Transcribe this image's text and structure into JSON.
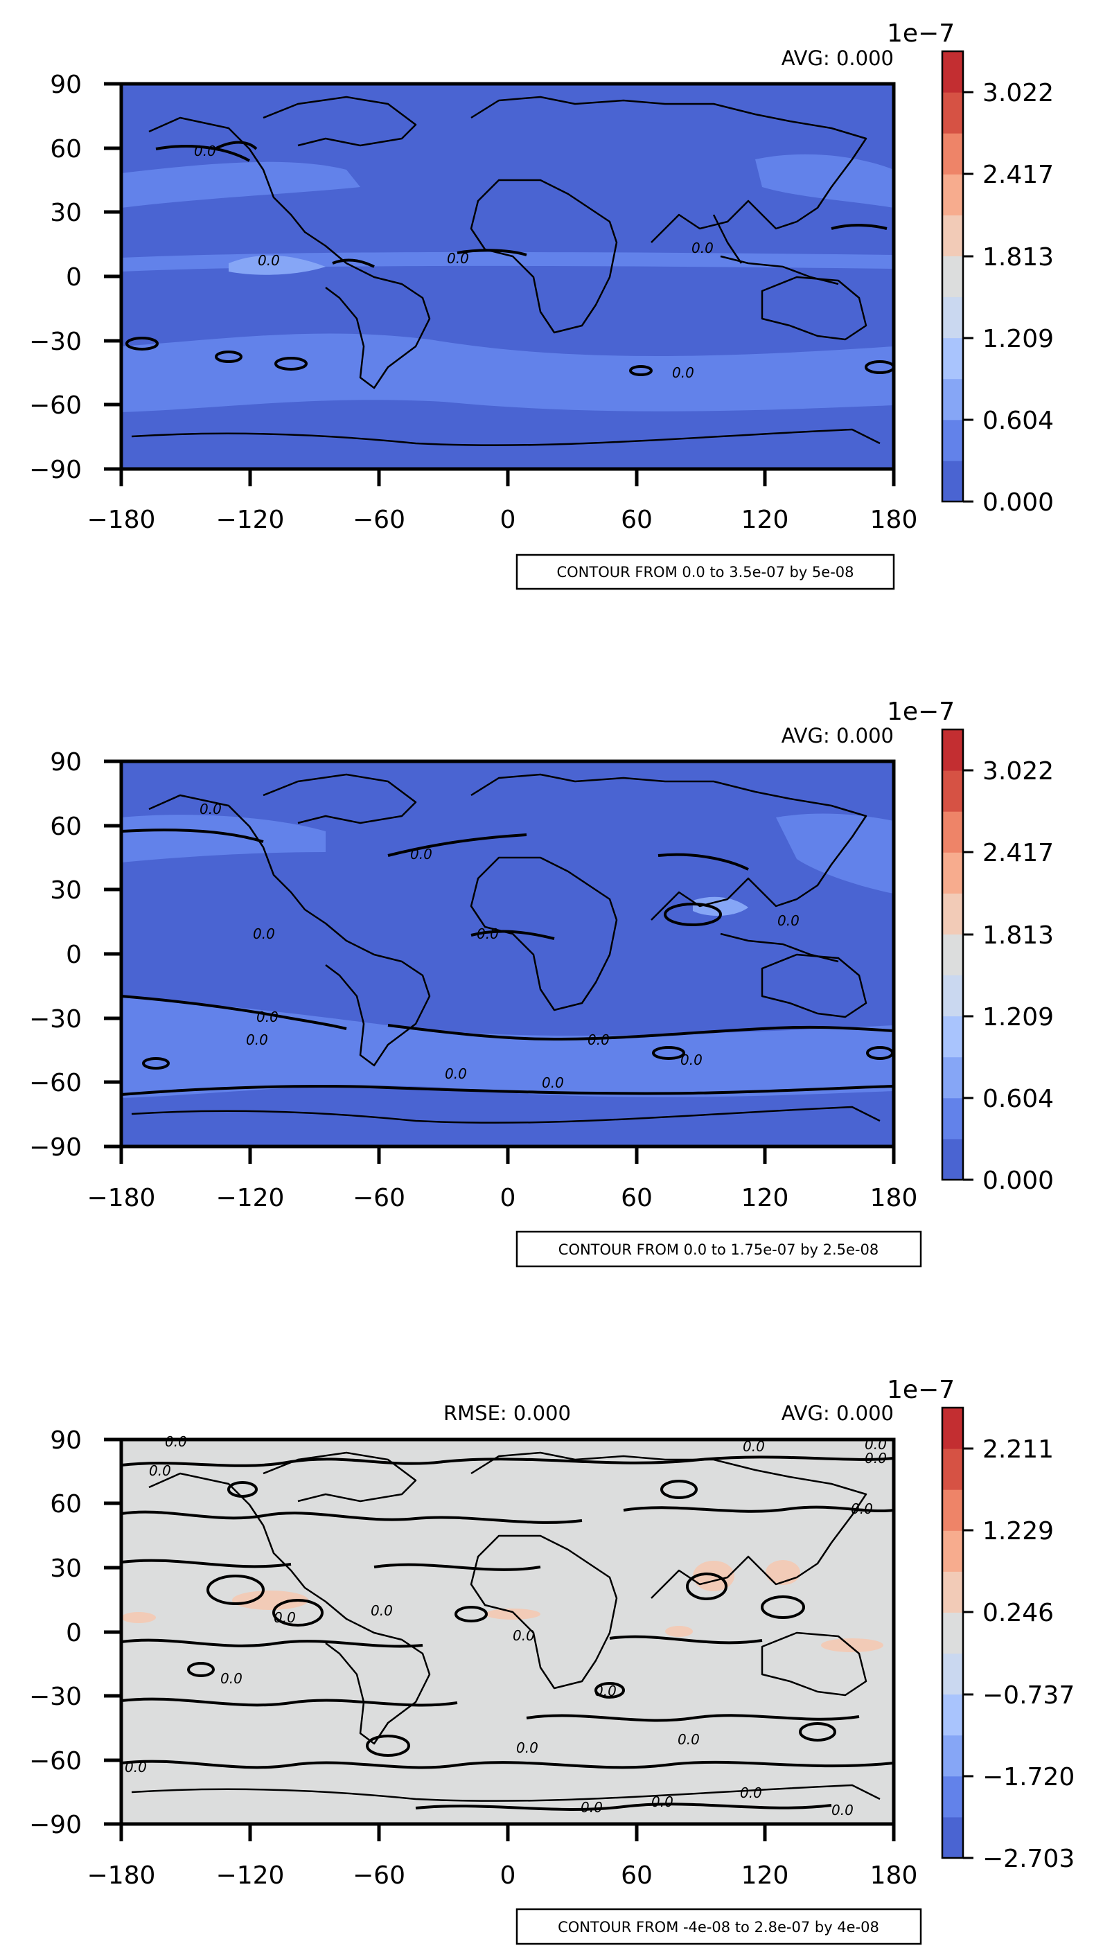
{
  "chart_data": [
    {
      "type": "heatmap",
      "projection": "map",
      "title": "",
      "stat_right": "AVG: 0.000",
      "stat_left": "",
      "xticks": [
        "−180",
        "−120",
        "−60",
        "0",
        "60",
        "120",
        "180"
      ],
      "yticks": [
        "90",
        "60",
        "30",
        "0",
        "−30",
        "−60",
        "−90"
      ],
      "xlim": [
        -180,
        180
      ],
      "ylim": [
        -90,
        90
      ],
      "grid": false,
      "colorbar": {
        "exponent": "1e−7",
        "tick_labels": [
          "0.000",
          "0.604",
          "1.209",
          "1.813",
          "2.417",
          "3.022"
        ],
        "range": [
          0,
          3.326e-07
        ],
        "levels": 11,
        "colormap": "coolwarm"
      },
      "contour_label": "CONTOUR FROM 0.0 to 3.5e-07 by 5e-08",
      "contour_value_label": "0.0"
    },
    {
      "type": "heatmap",
      "projection": "map",
      "title": "",
      "stat_right": "AVG: 0.000",
      "stat_left": "",
      "xticks": [
        "−180",
        "−120",
        "−60",
        "0",
        "60",
        "120",
        "180"
      ],
      "yticks": [
        "90",
        "60",
        "30",
        "0",
        "−30",
        "−60",
        "−90"
      ],
      "xlim": [
        -180,
        180
      ],
      "ylim": [
        -90,
        90
      ],
      "grid": false,
      "colorbar": {
        "exponent": "1e−7",
        "tick_labels": [
          "0.000",
          "0.604",
          "1.209",
          "1.813",
          "2.417",
          "3.022"
        ],
        "range": [
          0,
          3.326e-07
        ],
        "levels": 11,
        "colormap": "coolwarm"
      },
      "contour_label": "CONTOUR FROM 0.0 to 1.75e-07 by 2.5e-08",
      "contour_value_label": "0.0"
    },
    {
      "type": "heatmap",
      "projection": "map",
      "title": "",
      "stat_right": "AVG: 0.000",
      "stat_left": "RMSE: 0.000",
      "xticks": [
        "−180",
        "−120",
        "−60",
        "0",
        "60",
        "120",
        "180"
      ],
      "yticks": [
        "90",
        "60",
        "30",
        "0",
        "−30",
        "−60",
        "−90"
      ],
      "xlim": [
        -180,
        180
      ],
      "ylim": [
        -90,
        90
      ],
      "grid": false,
      "colorbar": {
        "exponent": "1e−7",
        "tick_labels": [
          "−2.703",
          "−1.720",
          "−0.737",
          "0.246",
          "1.229",
          "2.211"
        ],
        "range": [
          -2.703e-07,
          2.703e-07
        ],
        "levels": 11,
        "colormap": "coolwarm"
      },
      "contour_label": "CONTOUR FROM -4e-08 to 2.8e-07 by 4e-08",
      "contour_value_label": "0.0"
    }
  ],
  "colors": {
    "coolwarm": [
      "#4a64d2",
      "#6282ea",
      "#86a6f6",
      "#a9c4fd",
      "#cad8f0",
      "#dcdddd",
      "#f2cbb7",
      "#f7ac8e",
      "#ee8468",
      "#d65244",
      "#c32e31"
    ],
    "panel1_base": "#4a64d2",
    "panel1_band": "#6282ea",
    "panel3_base": "#dcdddd",
    "panel3_spot": "#f2cbb7"
  }
}
